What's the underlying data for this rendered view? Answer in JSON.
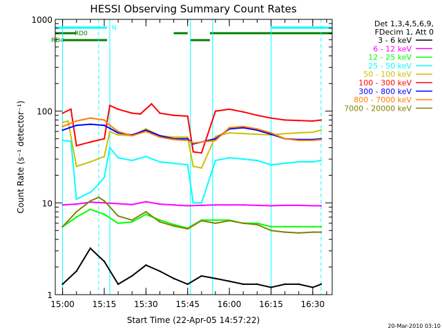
{
  "chart_data": {
    "type": "line",
    "title": "HESSI Observing Summary Count Rates",
    "xlabel": "Start Time (22-Apr-05 14:57:22)",
    "ylabel": "Count Rate (s⁻¹ detector⁻¹)",
    "yscale": "log",
    "ylim": [
      1,
      1000
    ],
    "xlim": [
      "14:57:22",
      "16:37:00"
    ],
    "x_ticks": [
      "15:00",
      "15:15",
      "15:30",
      "15:45",
      "16:00",
      "16:15",
      "16:30"
    ],
    "y_ticks": [
      "1",
      "10",
      "100",
      "1000"
    ],
    "footer": "20-Mar-2010 03:10",
    "legend_header": [
      "Det 1,3,4,5,6,9,",
      "FDecim 1, Att 0"
    ],
    "legend_position": "right",
    "grid": false,
    "flag_bars": [
      {
        "label": "N",
        "color": "#00ffff",
        "segments": [
          [
            "14:57:22",
            "15:16:00"
          ],
          [
            "16:15:00",
            "16:37:00"
          ]
        ]
      },
      {
        "label": "RD0",
        "color": "#008000",
        "segments": [
          [
            "14:57:22",
            "15:05:00"
          ],
          [
            "15:40:00",
            "15:45:00"
          ],
          [
            "15:53:00",
            "16:37:00"
          ]
        ]
      },
      {
        "label": "RD4",
        "color": "#008000",
        "segments": [
          [
            "15:00:00",
            "15:16:00"
          ],
          [
            "15:46:00",
            "15:53:00"
          ]
        ]
      }
    ],
    "vertical_markers": {
      "solid": [
        "15:00:00",
        "15:17:00",
        "15:46:00",
        "15:54:00",
        "16:15:00"
      ],
      "dashed": [
        "15:13:00",
        "16:33:00"
      ]
    },
    "series": [
      {
        "name": "3 - 6 keV",
        "color": "#000000",
        "x": [
          "15:00",
          "15:05",
          "15:10",
          "15:15",
          "15:20",
          "15:25",
          "15:30",
          "15:35",
          "15:40",
          "15:45",
          "15:50",
          "15:55",
          "16:00",
          "16:05",
          "16:10",
          "16:15",
          "16:20",
          "16:25",
          "16:30",
          "16:33"
        ],
        "values": [
          1.3,
          1.8,
          3.2,
          2.3,
          1.3,
          1.6,
          2.1,
          1.8,
          1.5,
          1.3,
          1.6,
          1.5,
          1.4,
          1.3,
          1.3,
          1.2,
          1.3,
          1.3,
          1.2,
          1.3
        ]
      },
      {
        "name": "6 - 12 keV",
        "color": "#ff00ff",
        "x": [
          "15:00",
          "15:05",
          "15:10",
          "15:15",
          "15:20",
          "15:25",
          "15:30",
          "15:35",
          "15:40",
          "15:45",
          "15:50",
          "15:55",
          "16:00",
          "16:05",
          "16:10",
          "16:15",
          "16:20",
          "16:25",
          "16:30",
          "16:33"
        ],
        "values": [
          9.5,
          9.7,
          10.2,
          10.0,
          9.8,
          9.6,
          10.3,
          9.7,
          9.5,
          9.3,
          9.4,
          9.5,
          9.5,
          9.5,
          9.4,
          9.3,
          9.4,
          9.4,
          9.3,
          9.3
        ]
      },
      {
        "name": "12 - 25 keV",
        "color": "#00ff00",
        "x": [
          "15:00",
          "15:05",
          "15:10",
          "15:15",
          "15:20",
          "15:25",
          "15:30",
          "15:35",
          "15:40",
          "15:45",
          "15:50",
          "15:55",
          "16:00",
          "16:05",
          "16:10",
          "16:15",
          "16:20",
          "16:25",
          "16:30",
          "16:33"
        ],
        "values": [
          5.5,
          7.0,
          8.5,
          7.5,
          6.0,
          6.2,
          7.5,
          6.5,
          5.8,
          5.3,
          6.5,
          6.5,
          6.5,
          6.0,
          6.0,
          5.5,
          5.5,
          5.5,
          5.5,
          5.5
        ]
      },
      {
        "name": "25 - 50 keV",
        "color": "#00ffff",
        "x": [
          "15:00",
          "15:03",
          "15:05",
          "15:10",
          "15:13",
          "15:15",
          "15:17",
          "15:20",
          "15:25",
          "15:30",
          "15:35",
          "15:40",
          "15:45",
          "15:47",
          "15:50",
          "15:55",
          "16:00",
          "16:05",
          "16:10",
          "16:15",
          "16:20",
          "16:25",
          "16:30",
          "16:33"
        ],
        "values": [
          48,
          47,
          11,
          13,
          16,
          19,
          40,
          31,
          29,
          32,
          28,
          27,
          26,
          10,
          10,
          29,
          31,
          30,
          29,
          26,
          27,
          28,
          28,
          29
        ]
      },
      {
        "name": "50 - 100 keV",
        "color": "#ccc000",
        "x": [
          "15:00",
          "15:02",
          "15:05",
          "15:10",
          "15:15",
          "15:17",
          "15:20",
          "15:25",
          "15:30",
          "15:35",
          "15:40",
          "15:45",
          "15:47",
          "15:50",
          "15:55",
          "16:00",
          "16:05",
          "16:10",
          "16:15",
          "16:20",
          "16:25",
          "16:30",
          "16:33"
        ],
        "values": [
          75,
          78,
          25,
          28,
          32,
          60,
          55,
          54,
          64,
          54,
          52,
          52,
          25,
          24,
          53,
          58,
          57,
          56,
          55,
          57,
          58,
          59,
          62
        ]
      },
      {
        "name": "100 - 300 keV",
        "color": "#ff0000",
        "x": [
          "15:00",
          "15:03",
          "15:05",
          "15:10",
          "15:15",
          "15:17",
          "15:20",
          "15:25",
          "15:28",
          "15:32",
          "15:35",
          "15:40",
          "15:45",
          "15:47",
          "15:50",
          "15:55",
          "16:00",
          "16:05",
          "16:10",
          "16:15",
          "16:20",
          "16:25",
          "16:30",
          "16:33"
        ],
        "values": [
          95,
          105,
          42,
          46,
          50,
          115,
          105,
          95,
          93,
          120,
          95,
          90,
          88,
          36,
          35,
          100,
          105,
          98,
          90,
          84,
          80,
          79,
          78,
          80
        ]
      },
      {
        "name": "300 - 800 keV",
        "color": "#0000ff",
        "x": [
          "15:00",
          "15:05",
          "15:10",
          "15:15",
          "15:17",
          "15:20",
          "15:25",
          "15:30",
          "15:35",
          "15:40",
          "15:45",
          "15:47",
          "15:50",
          "15:55",
          "16:00",
          "16:05",
          "16:10",
          "16:15",
          "16:20",
          "16:25",
          "16:30",
          "16:33"
        ],
        "values": [
          62,
          70,
          72,
          70,
          65,
          58,
          55,
          62,
          54,
          50,
          50,
          44,
          46,
          50,
          64,
          66,
          62,
          56,
          50,
          49,
          49,
          50
        ]
      },
      {
        "name": "800 - 7000 keV",
        "color": "#ff8000",
        "x": [
          "15:00",
          "15:05",
          "15:10",
          "15:15",
          "15:17",
          "15:20",
          "15:25",
          "15:30",
          "15:35",
          "15:40",
          "15:45",
          "15:47",
          "15:50",
          "15:55",
          "16:00",
          "16:05",
          "16:10",
          "16:15",
          "16:20",
          "16:25",
          "16:30",
          "16:33"
        ],
        "values": [
          68,
          78,
          84,
          80,
          70,
          60,
          54,
          60,
          52,
          49,
          48,
          45,
          46,
          48,
          66,
          68,
          64,
          58,
          50,
          48,
          48,
          49
        ]
      },
      {
        "name": "7000 - 20000 keV",
        "color": "#808000",
        "x": [
          "15:00",
          "15:05",
          "15:10",
          "15:13",
          "15:15",
          "15:20",
          "15:25",
          "15:30",
          "15:35",
          "15:40",
          "15:45",
          "15:50",
          "15:55",
          "16:00",
          "16:05",
          "16:10",
          "16:15",
          "16:20",
          "16:25",
          "16:30",
          "16:33"
        ],
        "values": [
          5.5,
          8.0,
          10.5,
          11.5,
          10.5,
          7.2,
          6.5,
          8.0,
          6.2,
          5.6,
          5.2,
          6.4,
          6.0,
          6.4,
          6.0,
          5.8,
          5.0,
          4.8,
          4.7,
          4.8,
          4.8
        ]
      }
    ]
  }
}
